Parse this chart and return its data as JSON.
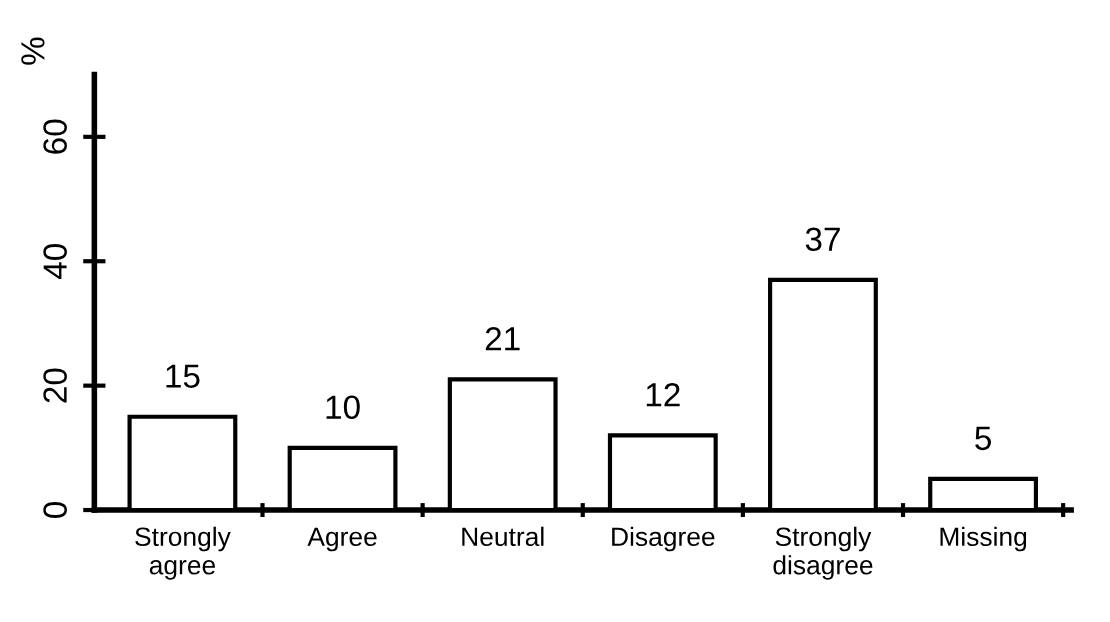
{
  "chart_data": {
    "type": "bar",
    "ylabel": "%",
    "categories": [
      "Strongly\nagree",
      "Agree",
      "Neutral",
      "Disagree",
      "Strongly\ndisagree",
      "Missing"
    ],
    "values": [
      15,
      10,
      21,
      12,
      37,
      5
    ],
    "color": "#ffffff",
    "ylim": [
      0,
      70
    ],
    "yticks": [
      0,
      20,
      40,
      60
    ],
    "grid": false,
    "data_labels": true
  }
}
